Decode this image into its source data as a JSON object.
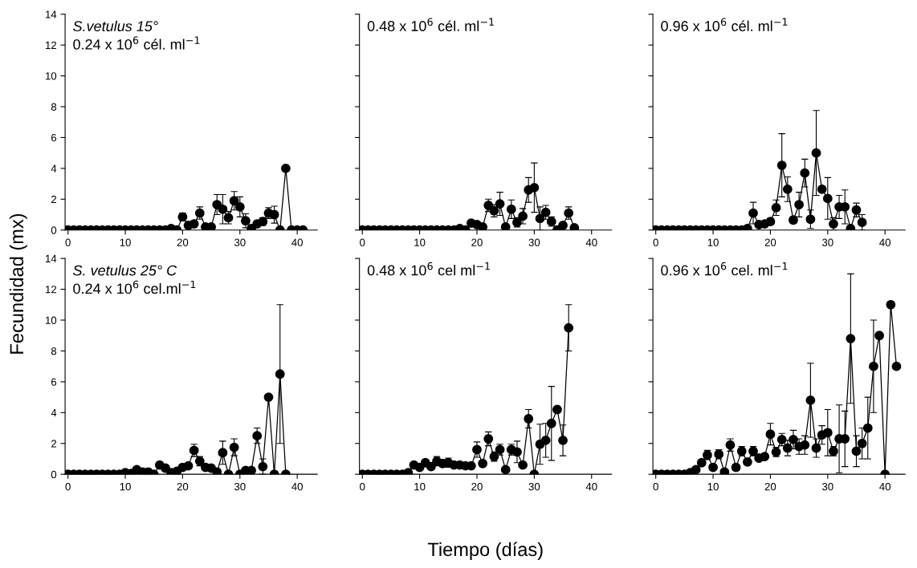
{
  "chart_data": [
    {
      "type": "line",
      "annotations": [
        "S.vetulus 15°",
        "0.24 x 10$^{6}$ cél. ml$^{−1}$"
      ],
      "ylabel": "Fecundidad (mx)",
      "xlim": [
        -0.5,
        43.5
      ],
      "xticks": [
        0,
        10,
        20,
        30,
        40
      ],
      "ylim": [
        0,
        14
      ],
      "yticks": [
        0,
        2,
        4,
        6,
        8,
        10,
        12,
        14
      ],
      "marker": "circle",
      "line_style": "solid",
      "grid": false,
      "legend": false,
      "series": [
        {
          "color": "#000000",
          "x": [
            0,
            1,
            2,
            3,
            4,
            5,
            6,
            7,
            8,
            9,
            10,
            11,
            12,
            13,
            14,
            15,
            16,
            17,
            18,
            19,
            20,
            21,
            22,
            23,
            24,
            25,
            26,
            27,
            28,
            29,
            30,
            31,
            32,
            33,
            34,
            35,
            36,
            37,
            38,
            39,
            40,
            41
          ],
          "values": [
            0,
            0,
            0,
            0,
            0,
            0,
            0,
            0,
            0,
            0,
            0,
            0,
            0,
            0,
            0,
            0,
            0,
            0,
            0.1,
            0,
            0.85,
            0.3,
            0.4,
            1.1,
            0.2,
            0.2,
            1.65,
            1.35,
            0.8,
            1.9,
            1.5,
            0.6,
            0.1,
            0.4,
            0.55,
            1.1,
            1.0,
            0,
            4.0,
            0,
            0,
            0
          ],
          "errors": [
            null,
            null,
            null,
            null,
            null,
            null,
            null,
            null,
            null,
            null,
            null,
            null,
            null,
            null,
            null,
            null,
            null,
            null,
            null,
            null,
            0.25,
            null,
            0.2,
            0.4,
            null,
            null,
            0.65,
            0.95,
            0.4,
            0.6,
            0.65,
            0.45,
            null,
            0.2,
            0.25,
            0.35,
            0.55,
            null,
            null,
            null,
            null,
            null
          ]
        }
      ]
    },
    {
      "type": "line",
      "annotations": [
        "0.48 x 10$^{6}$ cél. ml$^{−1}$"
      ],
      "xlim": [
        -0.5,
        43.5
      ],
      "xticks": [
        0,
        10,
        20,
        30,
        40
      ],
      "ylim": [
        0,
        14
      ],
      "yticks": [
        0,
        2,
        4,
        6,
        8,
        10,
        12,
        14
      ],
      "tick_labels": "x",
      "marker": "circle",
      "line_style": "solid",
      "grid": false,
      "legend": false,
      "series": [
        {
          "color": "#000000",
          "x": [
            0,
            1,
            2,
            3,
            4,
            5,
            6,
            7,
            8,
            9,
            10,
            11,
            12,
            13,
            14,
            15,
            16,
            17,
            18,
            19,
            20,
            21,
            22,
            23,
            24,
            25,
            26,
            27,
            28,
            29,
            30,
            31,
            32,
            33,
            34,
            35,
            36,
            37
          ],
          "values": [
            0,
            0,
            0,
            0,
            0,
            0,
            0,
            0,
            0,
            0,
            0,
            0,
            0,
            0,
            0,
            0,
            0,
            0.1,
            0,
            0.45,
            0.35,
            0.2,
            1.6,
            1.25,
            1.7,
            0.2,
            1.35,
            0.5,
            0.9,
            2.6,
            2.75,
            0.75,
            1.15,
            0.55,
            0,
            0.3,
            1.1,
            0.15
          ],
          "errors": [
            null,
            null,
            null,
            null,
            null,
            null,
            null,
            null,
            null,
            null,
            null,
            null,
            null,
            null,
            null,
            null,
            null,
            null,
            null,
            null,
            null,
            null,
            0.4,
            0.4,
            0.75,
            null,
            0.6,
            0.3,
            0.5,
            0.8,
            1.6,
            0.75,
            0.45,
            0.3,
            null,
            null,
            0.4,
            null
          ]
        }
      ]
    },
    {
      "type": "line",
      "annotations": [
        "0.96 x 10$^{6}$ cél. ml$^{−1}$"
      ],
      "xlim": [
        -0.5,
        43.5
      ],
      "xticks": [
        0,
        10,
        20,
        30,
        40
      ],
      "ylim": [
        0,
        14
      ],
      "yticks": [
        0,
        2,
        4,
        6,
        8,
        10,
        12,
        14
      ],
      "tick_labels": "x",
      "marker": "circle",
      "line_style": "solid",
      "grid": false,
      "legend": false,
      "series": [
        {
          "color": "#000000",
          "x": [
            0,
            1,
            2,
            3,
            4,
            5,
            6,
            7,
            8,
            9,
            10,
            11,
            12,
            13,
            14,
            15,
            16,
            17,
            18,
            19,
            20,
            21,
            22,
            23,
            24,
            25,
            26,
            27,
            28,
            29,
            30,
            31,
            32,
            33,
            34,
            35,
            36
          ],
          "values": [
            0,
            0,
            0,
            0,
            0,
            0,
            0,
            0,
            0,
            0,
            0,
            0,
            0,
            0,
            0,
            0,
            0.1,
            1.1,
            0.35,
            0.4,
            0.55,
            1.45,
            4.2,
            2.65,
            0.65,
            1.65,
            3.7,
            0.7,
            5.0,
            2.65,
            2.05,
            0.4,
            1.5,
            1.5,
            0.1,
            1.3,
            0.5
          ],
          "errors": [
            null,
            null,
            null,
            null,
            null,
            null,
            null,
            null,
            null,
            null,
            null,
            null,
            null,
            null,
            null,
            null,
            null,
            0.7,
            null,
            null,
            0.2,
            0.5,
            2.05,
            0.8,
            0.2,
            0.8,
            0.9,
            0.6,
            2.75,
            null,
            1.35,
            0.4,
            0.75,
            1.1,
            null,
            0.45,
            0.5
          ]
        }
      ]
    },
    {
      "type": "line",
      "annotations": [
        "S. vetulus 25° C",
        "0.24 x 10$^{6}$ cel.ml$^{−1}$"
      ],
      "xlim": [
        -0.5,
        43.5
      ],
      "xticks": [
        0,
        10,
        20,
        30,
        40
      ],
      "ylim": [
        0,
        14
      ],
      "yticks": [
        0,
        2,
        4,
        6,
        8,
        10,
        12,
        14
      ],
      "marker": "circle",
      "line_style": "solid",
      "grid": false,
      "legend": false,
      "series": [
        {
          "color": "#000000",
          "x": [
            0,
            1,
            2,
            3,
            4,
            5,
            6,
            7,
            8,
            9,
            10,
            11,
            12,
            13,
            14,
            15,
            16,
            17,
            18,
            19,
            20,
            21,
            22,
            23,
            24,
            25,
            26,
            27,
            28,
            29,
            30,
            31,
            32,
            33,
            34,
            35,
            36,
            37,
            38
          ],
          "values": [
            0,
            0,
            0,
            0,
            0,
            0,
            0,
            0,
            0,
            0,
            0.1,
            0.05,
            0.3,
            0.15,
            0.15,
            0,
            0.6,
            0.4,
            0.1,
            0.2,
            0.45,
            0.55,
            1.55,
            0.85,
            0.45,
            0.4,
            0.15,
            1.4,
            0,
            1.75,
            0,
            0.25,
            0.25,
            2.5,
            0.5,
            5.0,
            0,
            6.5,
            0
          ],
          "errors": [
            null,
            null,
            null,
            null,
            null,
            null,
            null,
            null,
            null,
            null,
            null,
            null,
            null,
            null,
            null,
            null,
            null,
            null,
            null,
            null,
            null,
            null,
            0.4,
            0.3,
            null,
            null,
            null,
            0.75,
            null,
            0.55,
            null,
            null,
            null,
            0.5,
            0.5,
            null,
            null,
            4.5,
            null
          ]
        }
      ]
    },
    {
      "type": "line",
      "annotations": [
        "0.48 x 10$^{6}$ cel ml$^{−1}$"
      ],
      "xlabel": "Tiempo (días)",
      "xlim": [
        -0.5,
        43.5
      ],
      "xticks": [
        0,
        10,
        20,
        30,
        40
      ],
      "ylim": [
        0,
        14
      ],
      "yticks": [
        0,
        2,
        4,
        6,
        8,
        10,
        12,
        14
      ],
      "tick_labels": "x",
      "marker": "circle",
      "line_style": "solid",
      "grid": false,
      "legend": false,
      "series": [
        {
          "color": "#000000",
          "x": [
            0,
            1,
            2,
            3,
            4,
            5,
            6,
            7,
            8,
            9,
            10,
            11,
            12,
            13,
            14,
            15,
            16,
            17,
            18,
            19,
            20,
            21,
            22,
            23,
            24,
            25,
            26,
            27,
            28,
            29,
            30,
            31,
            32,
            33,
            34,
            35,
            36
          ],
          "values": [
            0,
            0,
            0,
            0,
            0,
            0,
            0,
            0,
            0.1,
            0.6,
            0.45,
            0.75,
            0.5,
            0.85,
            0.7,
            0.75,
            0.6,
            0.6,
            0.55,
            0.55,
            1.6,
            0.7,
            2.3,
            1.15,
            1.6,
            0.3,
            1.6,
            1.45,
            0.6,
            3.6,
            0,
            1.95,
            2.2,
            3.3,
            4.2,
            2.2,
            9.5
          ],
          "errors": [
            null,
            null,
            null,
            null,
            null,
            null,
            null,
            null,
            null,
            null,
            null,
            null,
            null,
            0.3,
            null,
            0.3,
            null,
            null,
            null,
            null,
            0.5,
            null,
            0.45,
            0.3,
            0.35,
            null,
            0.35,
            0.7,
            null,
            0.6,
            null,
            1.3,
            1.1,
            2.4,
            0.2,
            1.0,
            1.5
          ]
        }
      ]
    },
    {
      "type": "line",
      "annotations": [
        "0.96 x 10$^{6}$ cel. ml$^{−1}$"
      ],
      "xlim": [
        -0.5,
        43.5
      ],
      "xticks": [
        0,
        10,
        20,
        30,
        40
      ],
      "ylim": [
        0,
        14
      ],
      "yticks": [
        0,
        2,
        4,
        6,
        8,
        10,
        12,
        14
      ],
      "tick_labels": "x",
      "marker": "circle",
      "line_style": "solid",
      "grid": false,
      "legend": false,
      "series": [
        {
          "color": "#000000",
          "x": [
            0,
            1,
            2,
            3,
            4,
            5,
            6,
            7,
            8,
            9,
            10,
            11,
            12,
            13,
            14,
            15,
            16,
            17,
            18,
            19,
            20,
            21,
            22,
            23,
            24,
            25,
            26,
            27,
            28,
            29,
            30,
            31,
            32,
            33,
            34,
            35,
            36,
            37,
            38,
            39,
            40,
            41,
            42
          ],
          "values": [
            0,
            0,
            0,
            0,
            0,
            0,
            0.1,
            0.3,
            0.75,
            1.25,
            0.45,
            1.3,
            0.15,
            1.9,
            0.45,
            1.5,
            0.8,
            1.5,
            1.05,
            1.15,
            2.6,
            1.45,
            2.25,
            1.7,
            2.25,
            1.8,
            1.9,
            4.8,
            1.7,
            2.55,
            2.7,
            1.5,
            2.3,
            2.3,
            8.8,
            1.5,
            2.0,
            3.0,
            7.0,
            9.0,
            0,
            11.0,
            7.0
          ],
          "errors": [
            null,
            null,
            null,
            null,
            null,
            null,
            null,
            null,
            null,
            0.3,
            null,
            0.3,
            null,
            0.4,
            0.2,
            0.3,
            0.2,
            0.3,
            null,
            null,
            0.7,
            0.3,
            0.4,
            0.5,
            0.6,
            0.5,
            0.6,
            2.4,
            0.6,
            0.6,
            1.5,
            0.3,
            2.2,
            1.8,
            4.2,
            1.0,
            1.0,
            2.0,
            3.0,
            null,
            null,
            null,
            null
          ]
        }
      ]
    }
  ]
}
